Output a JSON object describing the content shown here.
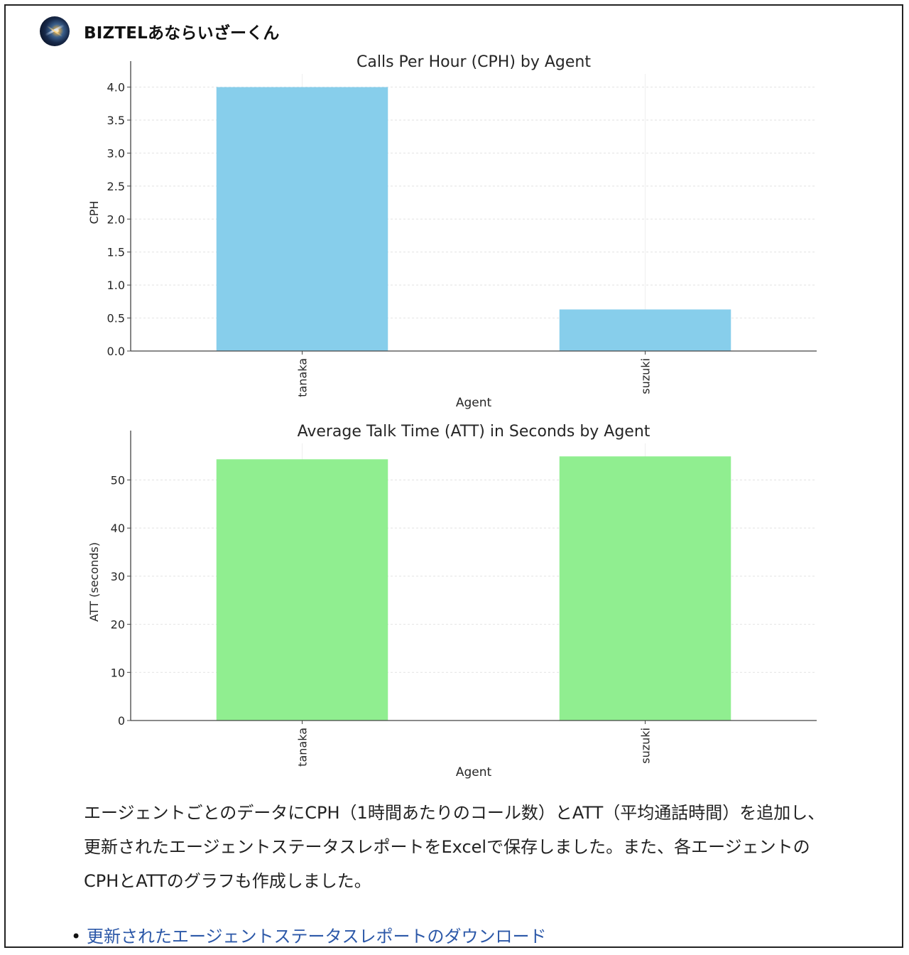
{
  "bot": {
    "name": "BIZTELあならいざーくん",
    "avatar_icon": "galaxy-avatar-icon"
  },
  "chart_data": [
    {
      "type": "bar",
      "title": "Calls Per Hour (CPH) by Agent",
      "xlabel": "Agent",
      "ylabel": "CPH",
      "categories": [
        "tanaka",
        "suzuki"
      ],
      "values": [
        4.0,
        0.63
      ],
      "ylim": [
        0,
        4.2
      ],
      "yticks": [
        0.0,
        0.5,
        1.0,
        1.5,
        2.0,
        2.5,
        3.0,
        3.5,
        4.0
      ],
      "ytick_labels": [
        "0.0",
        "0.5",
        "1.0",
        "1.5",
        "2.0",
        "2.5",
        "3.0",
        "3.5",
        "4.0"
      ],
      "grid": true,
      "color": "#87ceeb"
    },
    {
      "type": "bar",
      "title": "Average Talk Time (ATT) in Seconds by Agent",
      "xlabel": "Agent",
      "ylabel": "ATT (seconds)",
      "categories": [
        "tanaka",
        "suzuki"
      ],
      "values": [
        54.3,
        54.9
      ],
      "ylim": [
        0,
        57.6
      ],
      "yticks": [
        0,
        10,
        20,
        30,
        40,
        50
      ],
      "ytick_labels": [
        "0",
        "10",
        "20",
        "30",
        "40",
        "50"
      ],
      "grid": true,
      "color": "#90ee90"
    }
  ],
  "message": {
    "text": "エージェントごとのデータにCPH（1時間あたりのコール数）とATT（平均通話時間）を追加し、更新されたエージェントステータスレポートをExcelで保存しました。また、各エージェントのCPHとATTのグラフも作成しました。"
  },
  "links": [
    {
      "bullet": "•",
      "label": "更新されたエージェントステータスレポートのダウンロード"
    }
  ]
}
